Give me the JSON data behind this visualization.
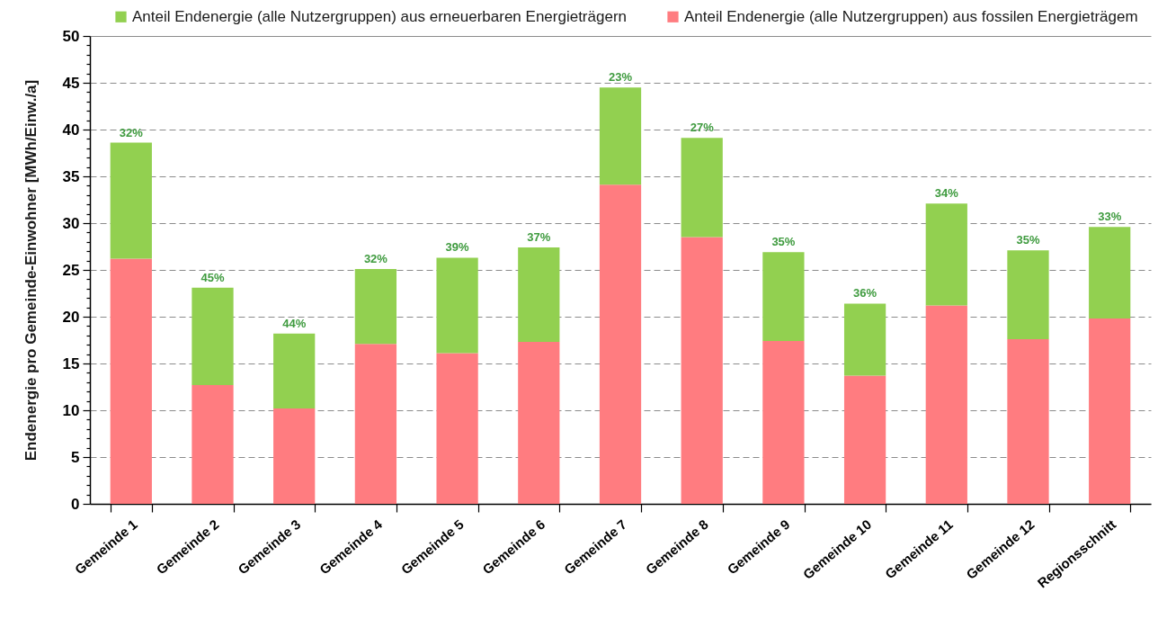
{
  "chart_data": {
    "type": "bar",
    "stacked": true,
    "ylabel": "Endenergie pro Gemeinde-Einwohner [MWh/Einw./a]",
    "categories": [
      "Gemeinde 1",
      "Gemeinde 2",
      "Gemeinde 3",
      "Gemeinde 4",
      "Gemeinde 5",
      "Gemeinde 6",
      "Gemeinde 7",
      "Gemeinde 8",
      "Gemeinde 9",
      "Gemeinde 10",
      "Gemeinde 11",
      "Gemeinde 12",
      "Regionsschnitt"
    ],
    "series": [
      {
        "name": "Anteil Endenergie (alle Nutzergruppen) aus fossilen Energieträgem",
        "color": "#ff7c80",
        "values": [
          26.2,
          12.7,
          10.2,
          17.1,
          16.1,
          17.3,
          34.1,
          28.5,
          17.4,
          13.7,
          21.2,
          17.6,
          19.8
        ]
      },
      {
        "name": "Anteil Endenergie (alle Nutzergruppen) aus erneuerbaren Energieträgern",
        "color": "#92d050",
        "values": [
          12.4,
          10.4,
          8.0,
          8.0,
          10.2,
          10.1,
          10.4,
          10.6,
          9.5,
          7.7,
          10.9,
          9.5,
          9.8
        ]
      }
    ],
    "annotations": [
      {
        "text": "32%",
        "x": "Gemeinde 1",
        "y": 38.6
      },
      {
        "text": "45%",
        "x": "Gemeinde 2",
        "y": 23.1
      },
      {
        "text": "44%",
        "x": "Gemeinde 3",
        "y": 18.2
      },
      {
        "text": "32%",
        "x": "Gemeinde 4",
        "y": 25.1
      },
      {
        "text": "39%",
        "x": "Gemeinde 5",
        "y": 26.3
      },
      {
        "text": "37%",
        "x": "Gemeinde 6",
        "y": 27.4
      },
      {
        "text": "23%",
        "x": "Gemeinde 7",
        "y": 44.5
      },
      {
        "text": "27%",
        "x": "Gemeinde 8",
        "y": 39.1
      },
      {
        "text": "35%",
        "x": "Gemeinde 9",
        "y": 26.9
      },
      {
        "text": "36%",
        "x": "Gemeinde 10",
        "y": 21.4
      },
      {
        "text": "34%",
        "x": "Gemeinde 11",
        "y": 32.1
      },
      {
        "text": "35%",
        "x": "Gemeinde 12",
        "y": 27.1
      },
      {
        "text": "33%",
        "x": "Regionsschnitt",
        "y": 29.6
      }
    ],
    "ylim": [
      0,
      50
    ],
    "yticks": [
      0,
      {
        "value": 1,
        "label": null
      },
      {
        "value": 2,
        "label": null
      },
      {
        "value": 3,
        "label": null
      },
      {
        "value": 4,
        "label": null
      },
      5,
      {
        "value": 6,
        "label": null
      },
      {
        "value": 7,
        "label": null
      },
      {
        "value": 8,
        "label": null
      },
      {
        "value": 9,
        "label": null
      },
      10,
      {
        "value": 11,
        "label": null
      },
      {
        "value": 12,
        "label": null
      },
      {
        "value": 13,
        "label": null
      },
      {
        "value": 14,
        "label": null
      },
      15,
      {
        "value": 16,
        "label": null
      },
      {
        "value": 17,
        "label": null
      },
      {
        "value": 18,
        "label": null
      },
      {
        "value": 19,
        "label": null
      },
      20,
      {
        "value": 21,
        "label": null
      },
      {
        "value": 22,
        "label": null
      },
      {
        "value": 23,
        "label": null
      },
      {
        "value": 24,
        "label": null
      },
      25,
      {
        "value": 26,
        "label": null
      },
      {
        "value": 27,
        "label": null
      },
      {
        "value": 28,
        "label": null
      },
      {
        "value": 29,
        "label": null
      },
      30,
      {
        "value": 31,
        "label": null
      },
      {
        "value": 32,
        "label": null
      },
      {
        "value": 33,
        "label": null
      },
      {
        "value": 34,
        "label": null
      },
      35,
      {
        "value": 36,
        "label": null
      },
      {
        "value": 37,
        "label": null
      },
      {
        "value": 38,
        "label": null
      },
      {
        "value": 39,
        "label": null
      },
      40,
      {
        "value": 41,
        "label": null
      },
      {
        "value": 42,
        "label": null
      },
      {
        "value": 43,
        "label": null
      },
      {
        "value": 44,
        "label": null
      },
      45,
      {
        "value": 46,
        "label": null
      },
      {
        "value": 47,
        "label": null
      },
      {
        "value": 48,
        "label": null
      },
      {
        "value": 49,
        "label": null
      },
      50
    ],
    "grid": "y",
    "legend": "top"
  }
}
